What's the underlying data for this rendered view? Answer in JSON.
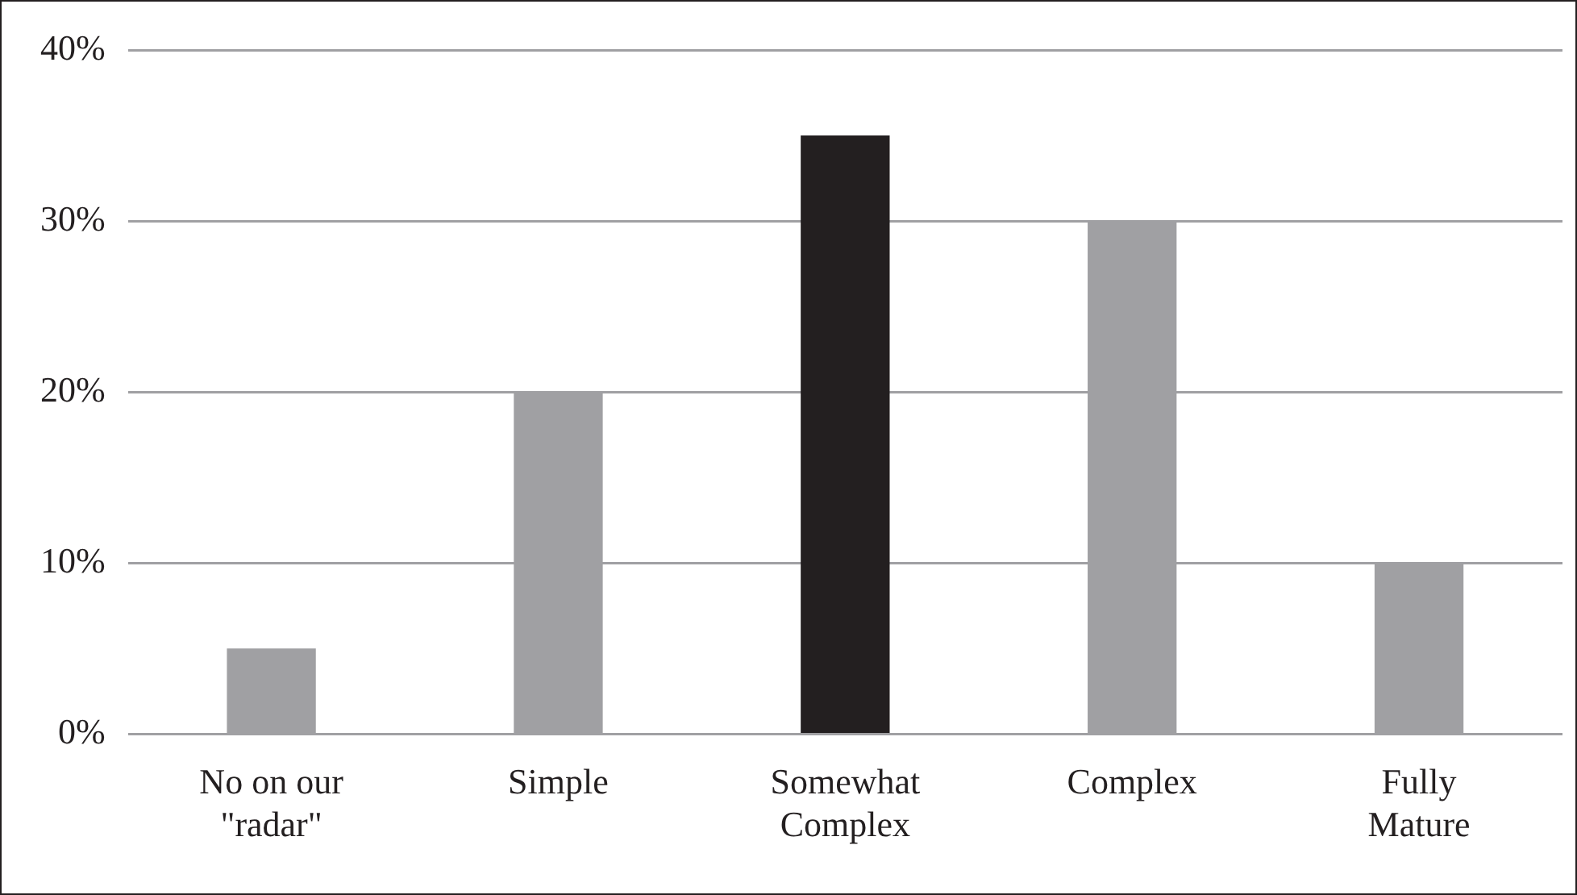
{
  "chart_data": {
    "type": "bar",
    "categories": [
      "No on our \"radar\"",
      "Simple",
      "Somewhat Complex",
      "Complex",
      "Fully Mature"
    ],
    "values": [
      5,
      20,
      35,
      30,
      10
    ],
    "colors": [
      "#a0a0a3",
      "#a0a0a3",
      "#231f20",
      "#a0a0a3",
      "#a0a0a3"
    ],
    "ylim": [
      0,
      40
    ],
    "yticks": [
      {
        "value": 0,
        "label": "0%"
      },
      {
        "value": 10,
        "label": "10%"
      },
      {
        "value": 20,
        "label": "20%"
      },
      {
        "value": 30,
        "label": "30%"
      },
      {
        "value": 40,
        "label": "40%"
      }
    ],
    "grid": "y",
    "legend": false
  }
}
